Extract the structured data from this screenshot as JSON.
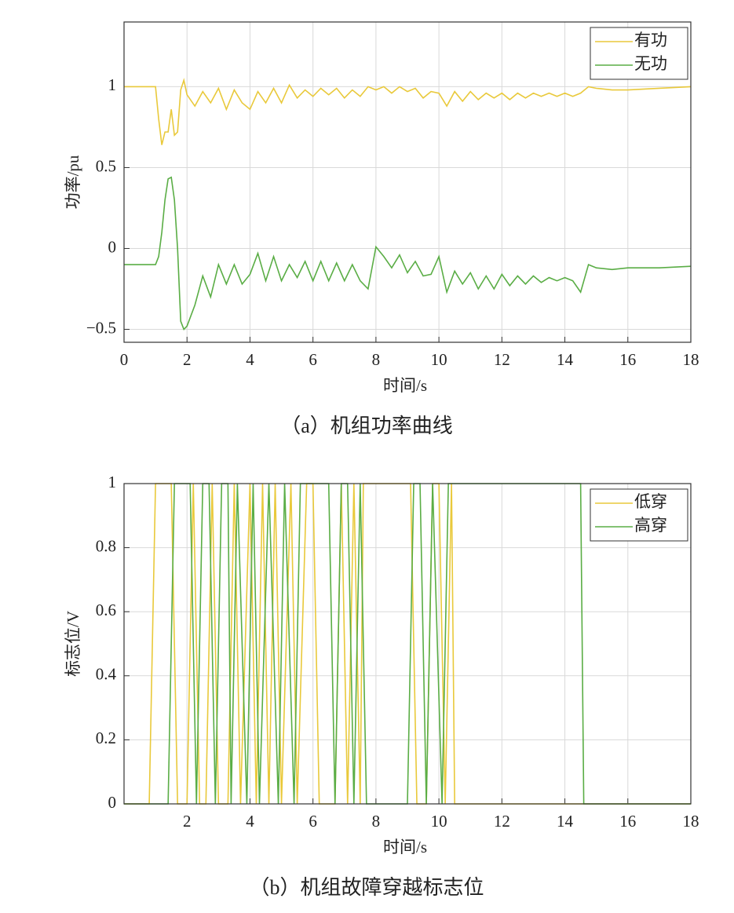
{
  "chart_data": [
    {
      "type": "line",
      "x_label": "时间/s",
      "y_label": "功率/pu",
      "caption": "（a）机组功率曲线",
      "xlim": [
        0,
        18
      ],
      "xticks": [
        0,
        2,
        4,
        6,
        8,
        10,
        12,
        14,
        16,
        18
      ],
      "ylim": [
        -0.58,
        1.4
      ],
      "yticks": [
        {
          "value": -0.5,
          "label": "−0.5"
        },
        0,
        0.5,
        1
      ],
      "grid": true,
      "legend": "northeast",
      "x": [
        0,
        0.5,
        1,
        1.1,
        1.2,
        1.3,
        1.4,
        1.5,
        1.6,
        1.7,
        1.8,
        1.9,
        2,
        2.25,
        2.5,
        2.75,
        3,
        3.25,
        3.5,
        3.75,
        4,
        4.25,
        4.5,
        4.75,
        5,
        5.25,
        5.5,
        5.75,
        6,
        6.25,
        6.5,
        6.75,
        7,
        7.25,
        7.5,
        7.75,
        8,
        8.25,
        8.5,
        8.75,
        9,
        9.25,
        9.5,
        9.75,
        10,
        10.25,
        10.5,
        10.75,
        11,
        11.25,
        11.5,
        11.75,
        12,
        12.25,
        12.5,
        12.75,
        13,
        13.25,
        13.5,
        13.75,
        14,
        14.25,
        14.5,
        14.75,
        15,
        15.5,
        16,
        17,
        18
      ],
      "series": [
        {
          "name": "有功",
          "color": "#e9c93b",
          "values": [
            1,
            1,
            1,
            0.8,
            0.64,
            0.72,
            0.72,
            0.86,
            0.7,
            0.72,
            0.98,
            1.04,
            0.95,
            0.88,
            0.97,
            0.9,
            0.99,
            0.86,
            0.98,
            0.9,
            0.86,
            0.97,
            0.9,
            0.99,
            0.9,
            1.01,
            0.93,
            0.98,
            0.94,
            0.99,
            0.95,
            0.99,
            0.93,
            0.98,
            0.94,
            1.0,
            0.98,
            1.0,
            0.96,
            1.0,
            0.97,
            0.99,
            0.93,
            0.97,
            0.96,
            0.88,
            0.97,
            0.91,
            0.97,
            0.92,
            0.96,
            0.93,
            0.96,
            0.92,
            0.96,
            0.93,
            0.96,
            0.94,
            0.96,
            0.94,
            0.96,
            0.94,
            0.96,
            1.0,
            0.99,
            0.98,
            0.98,
            0.99,
            1.0
          ]
        },
        {
          "name": "无功",
          "color": "#5aad45",
          "values": [
            -0.1,
            -0.1,
            -0.1,
            -0.05,
            0.1,
            0.3,
            0.43,
            0.44,
            0.3,
            0,
            -0.45,
            -0.5,
            -0.48,
            -0.35,
            -0.17,
            -0.3,
            -0.1,
            -0.22,
            -0.1,
            -0.22,
            -0.16,
            -0.03,
            -0.2,
            -0.05,
            -0.2,
            -0.1,
            -0.18,
            -0.08,
            -0.2,
            -0.08,
            -0.2,
            -0.09,
            -0.2,
            -0.1,
            -0.2,
            -0.25,
            0.01,
            -0.05,
            -0.12,
            -0.04,
            -0.15,
            -0.08,
            -0.17,
            -0.16,
            -0.05,
            -0.27,
            -0.14,
            -0.22,
            -0.15,
            -0.25,
            -0.17,
            -0.25,
            -0.16,
            -0.23,
            -0.17,
            -0.22,
            -0.17,
            -0.21,
            -0.18,
            -0.2,
            -0.18,
            -0.2,
            -0.27,
            -0.1,
            -0.12,
            -0.13,
            -0.12,
            -0.12,
            -0.11
          ]
        }
      ]
    },
    {
      "type": "line",
      "x_label": "时间/s",
      "y_label": "标志位/V",
      "caption": "（b）机组故障穿越标志位",
      "xlim": [
        0,
        18
      ],
      "xticks": [
        2,
        4,
        6,
        8,
        10,
        12,
        14,
        16,
        18
      ],
      "ylim": [
        0,
        1
      ],
      "yticks": [
        0,
        0.2,
        0.4,
        0.6,
        0.8,
        1
      ],
      "grid": true,
      "legend": "northeast",
      "series": [
        {
          "name": "低穿",
          "color": "#e9c93b",
          "x": [
            0,
            0.8,
            1.0,
            1.5,
            1.7,
            2.0,
            2.2,
            2.4,
            2.6,
            2.8,
            3.0,
            3.3,
            3.5,
            3.7,
            4.0,
            4.2,
            4.4,
            4.6,
            4.8,
            5.0,
            5.3,
            5.5,
            5.8,
            6.0,
            6.2,
            6.7,
            6.9,
            7.1,
            7.3,
            7.5,
            7.6,
            9.1,
            9.3,
            9.6,
            9.8,
            10.0,
            10.2,
            10.4,
            10.5,
            18
          ],
          "values": [
            0,
            0,
            1,
            1,
            0,
            0,
            1,
            0,
            0,
            1,
            0,
            0,
            1,
            0,
            1,
            0,
            1,
            0,
            1,
            0,
            1,
            0,
            1,
            1,
            0,
            0,
            1,
            0,
            1,
            0,
            1,
            1,
            0,
            0,
            1,
            1,
            0,
            1,
            0,
            0
          ]
        },
        {
          "name": "高穿",
          "color": "#5aad45",
          "x": [
            0,
            1.4,
            1.6,
            2.1,
            2.3,
            2.5,
            2.7,
            2.9,
            3.1,
            3.3,
            3.4,
            3.6,
            3.9,
            4.1,
            4.3,
            4.6,
            4.9,
            5.1,
            5.4,
            5.6,
            5.9,
            6.1,
            6.5,
            6.7,
            6.9,
            7.1,
            7.3,
            7.5,
            7.7,
            9.0,
            9.2,
            9.4,
            9.6,
            9.8,
            10.1,
            10.3,
            14.5,
            14.6,
            18
          ],
          "values": [
            0,
            0,
            1,
            1,
            0,
            1,
            1,
            0,
            1,
            1,
            0,
            1,
            0,
            1,
            0,
            1,
            0,
            1,
            0,
            1,
            1,
            1,
            1,
            0,
            1,
            1,
            0,
            1,
            0,
            0,
            1,
            1,
            0,
            1,
            0,
            1,
            1,
            0,
            0
          ]
        }
      ]
    }
  ]
}
